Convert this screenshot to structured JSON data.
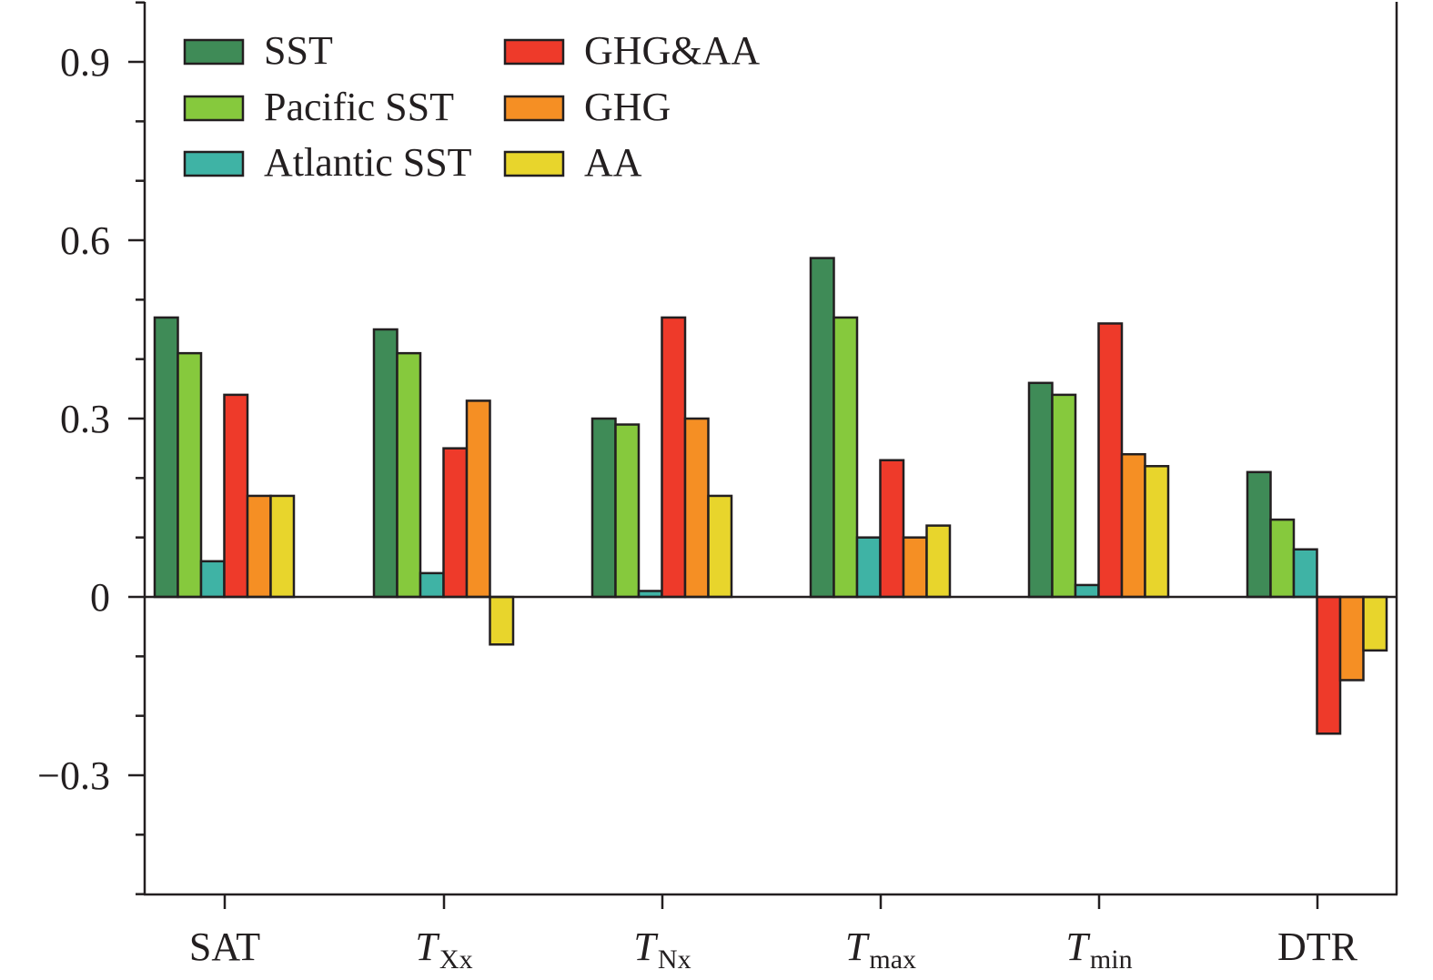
{
  "chart_data": {
    "type": "bar",
    "title": "",
    "xlabel": "",
    "ylabel": "",
    "ylim": [
      -0.5,
      1.0
    ],
    "yticks": [
      {
        "value": 0.9,
        "label": "0.9"
      },
      {
        "value": 0.6,
        "label": "0.6"
      },
      {
        "value": 0.3,
        "label": "0.3"
      },
      {
        "value": 0.0,
        "label": "0"
      },
      {
        "value": -0.3,
        "label": "−0.3"
      }
    ],
    "yminor_step": 0.1,
    "grid": false,
    "legend_position": "top-left",
    "categories": [
      {
        "main": "SAT",
        "sub": ""
      },
      {
        "main": "T",
        "sub": "Xx"
      },
      {
        "main": "T",
        "sub": "Nx"
      },
      {
        "main": "T",
        "sub": "max"
      },
      {
        "main": "T",
        "sub": "min"
      },
      {
        "main": "DTR",
        "sub": ""
      }
    ],
    "series": [
      {
        "name": "SST",
        "color": "#3f8b57",
        "values": [
          0.47,
          0.45,
          0.3,
          0.57,
          0.36,
          0.21
        ]
      },
      {
        "name": "Pacific SST",
        "color": "#86c93d",
        "values": [
          0.41,
          0.41,
          0.29,
          0.47,
          0.34,
          0.13
        ]
      },
      {
        "name": "Atlantic SST",
        "color": "#3fb3a5",
        "values": [
          0.06,
          0.04,
          0.01,
          0.1,
          0.02,
          0.08
        ]
      },
      {
        "name": "GHG&AA",
        "color": "#ee3a2a",
        "values": [
          0.34,
          0.25,
          0.47,
          0.23,
          0.46,
          -0.23
        ]
      },
      {
        "name": "GHG",
        "color": "#f58f24",
        "values": [
          0.17,
          0.33,
          0.3,
          0.1,
          0.24,
          -0.14
        ]
      },
      {
        "name": "AA",
        "color": "#e8d52c",
        "values": [
          0.17,
          -0.08,
          0.17,
          0.12,
          0.22,
          -0.09
        ]
      }
    ]
  }
}
